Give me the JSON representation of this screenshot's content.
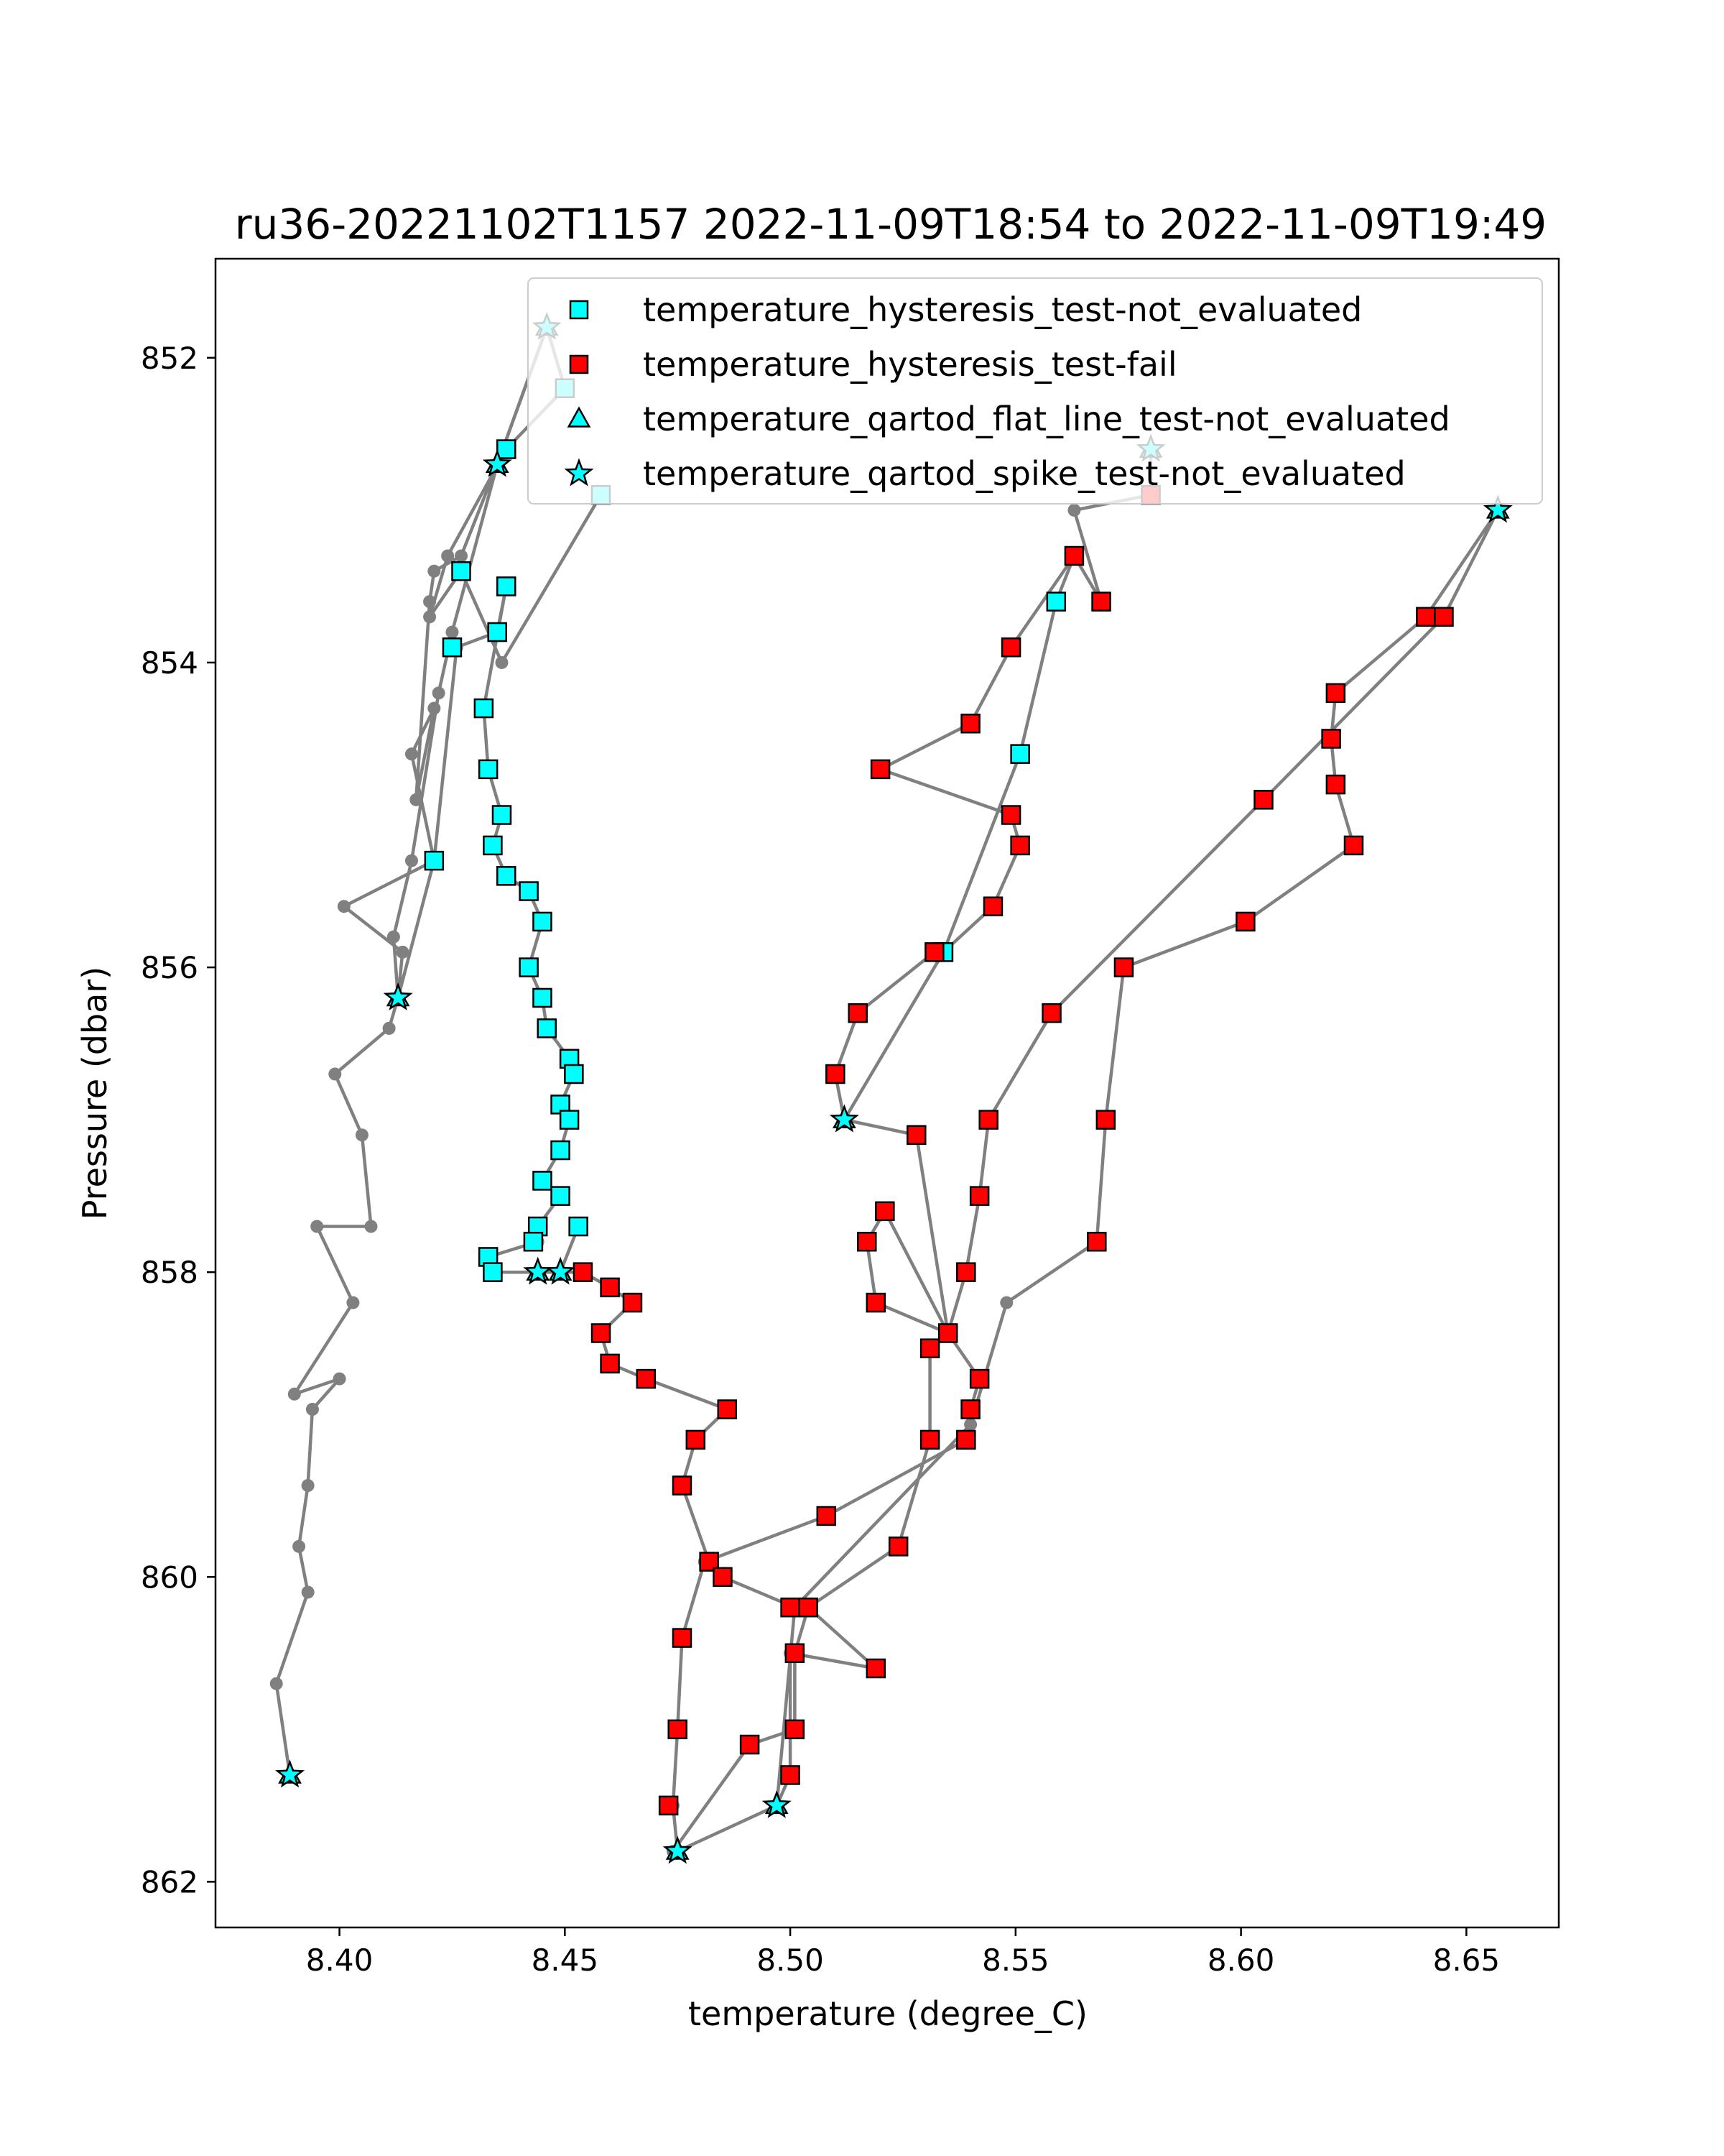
{
  "chart_data": {
    "type": "scatter",
    "title": "ru36-20221102T1157 2022-11-09T18:54 to 2022-11-09T19:49",
    "xlabel": "temperature (degree_C)",
    "ylabel": "Pressure (dbar)",
    "xlim": [
      8.3725,
      8.6705
    ],
    "ylim": [
      862.3,
      851.35
    ],
    "y_inverted": true,
    "grid": false,
    "legend_position": "top-right",
    "x_ticks": [
      "8.40",
      "8.45",
      "8.50",
      "8.55",
      "8.60",
      "8.65"
    ],
    "y_ticks": [
      "852",
      "854",
      "856",
      "858",
      "860",
      "862"
    ],
    "colors": {
      "line": "#808080",
      "not_evaluated": "#00ffff",
      "fail": "#ff0000",
      "edge": "#000000"
    },
    "legend": [
      {
        "label": "temperature_hysteresis_test-not_evaluated",
        "marker": "square",
        "color": "#00ffff"
      },
      {
        "label": "temperature_hysteresis_test-fail",
        "marker": "square",
        "color": "#ff0000"
      },
      {
        "label": "temperature_qartod_flat_line_test-not_evaluated",
        "marker": "triangle",
        "color": "#00ffff"
      },
      {
        "label": "temperature_qartod_spike_test-not_evaluated",
        "marker": "star",
        "color": "#00ffff"
      }
    ],
    "profiles": [
      [
        [
          8.389,
          861.3
        ],
        [
          8.386,
          860.7
        ],
        [
          8.393,
          860.1
        ],
        [
          8.391,
          859.8
        ],
        [
          8.393,
          859.4
        ],
        [
          8.394,
          858.9
        ],
        [
          8.4,
          858.7
        ],
        [
          8.39,
          858.8
        ],
        [
          8.403,
          858.2
        ],
        [
          8.395,
          857.7
        ],
        [
          8.407,
          857.7
        ],
        [
          8.405,
          857.1
        ],
        [
          8.399,
          856.7
        ],
        [
          8.411,
          856.4
        ],
        [
          8.413,
          856.2
        ],
        [
          8.414,
          855.9
        ],
        [
          8.401,
          855.6
        ],
        [
          8.421,
          855.3
        ],
        [
          8.416,
          854.6
        ],
        [
          8.421,
          854.3
        ],
        [
          8.417,
          854.9
        ],
        [
          8.42,
          853.6
        ],
        [
          8.421,
          853.4
        ],
        [
          8.427,
          853.3
        ],
        [
          8.435,
          852.7
        ],
        [
          8.446,
          851.8
        ]
      ],
      [
        [
          8.446,
          851.8
        ],
        [
          8.435,
          852.7
        ],
        [
          8.425,
          853.8
        ],
        [
          8.422,
          854.2
        ],
        [
          8.416,
          855.3
        ],
        [
          8.412,
          855.8
        ],
        [
          8.413,
          856.2
        ]
      ],
      [
        [
          8.446,
          851.8
        ],
        [
          8.45,
          852.2
        ],
        [
          8.437,
          852.6
        ],
        [
          8.424,
          853.3
        ],
        [
          8.42,
          853.7
        ],
        [
          8.427,
          853.4
        ],
        [
          8.436,
          854.0
        ],
        [
          8.458,
          852.9
        ]
      ],
      [
        [
          8.413,
          856.2
        ],
        [
          8.421,
          855.3
        ],
        [
          8.426,
          853.9
        ],
        [
          8.435,
          853.8
        ],
        [
          8.437,
          853.5
        ],
        [
          8.432,
          854.3
        ]
      ],
      [
        [
          8.432,
          854.3
        ],
        [
          8.433,
          854.7
        ],
        [
          8.436,
          855.0
        ],
        [
          8.434,
          855.2
        ],
        [
          8.437,
          855.4
        ],
        [
          8.442,
          855.5
        ],
        [
          8.445,
          855.7
        ],
        [
          8.442,
          856.0
        ],
        [
          8.445,
          856.2
        ],
        [
          8.446,
          856.4
        ],
        [
          8.451,
          856.6
        ],
        [
          8.452,
          856.7
        ],
        [
          8.449,
          856.9
        ],
        [
          8.451,
          857.0
        ],
        [
          8.449,
          857.2
        ],
        [
          8.445,
          857.4
        ],
        [
          8.449,
          857.5
        ],
        [
          8.444,
          857.7
        ],
        [
          8.444,
          857.8
        ],
        [
          8.433,
          857.9
        ],
        [
          8.434,
          858.0
        ],
        [
          8.444,
          858.0
        ],
        [
          8.449,
          858.0
        ],
        [
          8.453,
          857.7
        ]
      ],
      [
        [
          8.444,
          858.0
        ],
        [
          8.454,
          858.0
        ],
        [
          8.46,
          858.1
        ],
        [
          8.465,
          858.2
        ],
        [
          8.458,
          858.4
        ],
        [
          8.46,
          858.6
        ],
        [
          8.468,
          858.7
        ],
        [
          8.486,
          858.9
        ],
        [
          8.479,
          859.1
        ],
        [
          8.476,
          859.4
        ],
        [
          8.482,
          859.9
        ],
        [
          8.485,
          860.0
        ],
        [
          8.501,
          860.2
        ],
        [
          8.504,
          860.2
        ],
        [
          8.519,
          860.6
        ],
        [
          8.5,
          860.5
        ],
        [
          8.5,
          861.3
        ],
        [
          8.497,
          861.5
        ],
        [
          8.475,
          861.8
        ],
        [
          8.474,
          861.5
        ],
        [
          8.475,
          861.0
        ],
        [
          8.476,
          860.4
        ],
        [
          8.481,
          859.9
        ]
      ],
      [
        [
          8.474,
          861.8
        ],
        [
          8.491,
          861.1
        ],
        [
          8.501,
          861.0
        ],
        [
          8.501,
          860.5
        ],
        [
          8.504,
          860.2
        ],
        [
          8.524,
          859.8
        ],
        [
          8.531,
          859.1
        ],
        [
          8.531,
          858.5
        ],
        [
          8.535,
          858.4
        ],
        [
          8.542,
          858.7
        ],
        [
          8.54,
          858.9
        ],
        [
          8.539,
          859.1
        ],
        [
          8.508,
          859.6
        ],
        [
          8.481,
          859.9
        ]
      ],
      [
        [
          8.497,
          861.5
        ],
        [
          8.501,
          860.2
        ],
        [
          8.54,
          859.0
        ],
        [
          8.548,
          858.2
        ],
        [
          8.568,
          857.8
        ],
        [
          8.57,
          857.0
        ],
        [
          8.574,
          856.0
        ],
        [
          8.601,
          855.7
        ],
        [
          8.625,
          855.2
        ],
        [
          8.621,
          854.8
        ],
        [
          8.62,
          854.5
        ],
        [
          8.621,
          854.2
        ],
        [
          8.641,
          853.7
        ],
        [
          8.657,
          853.0
        ],
        [
          8.645,
          853.7
        ],
        [
          8.605,
          854.9
        ],
        [
          8.558,
          856.3
        ],
        [
          8.544,
          857.0
        ],
        [
          8.542,
          857.5
        ],
        [
          8.539,
          858.0
        ],
        [
          8.535,
          858.4
        ]
      ],
      [
        [
          8.535,
          858.4
        ],
        [
          8.521,
          857.6
        ],
        [
          8.517,
          857.8
        ],
        [
          8.519,
          858.2
        ],
        [
          8.535,
          858.4
        ],
        [
          8.528,
          857.1
        ],
        [
          8.512,
          857.0
        ],
        [
          8.51,
          856.7
        ],
        [
          8.515,
          856.3
        ],
        [
          8.532,
          855.9
        ],
        [
          8.534,
          855.9
        ],
        [
          8.545,
          855.6
        ],
        [
          8.551,
          855.2
        ],
        [
          8.549,
          855.0
        ],
        [
          8.52,
          854.7
        ],
        [
          8.54,
          854.4
        ],
        [
          8.549,
          853.9
        ],
        [
          8.563,
          853.3
        ],
        [
          8.569,
          853.6
        ],
        [
          8.563,
          853.0
        ],
        [
          8.58,
          852.9
        ],
        [
          8.58,
          852.6
        ]
      ],
      [
        [
          8.512,
          857.0
        ],
        [
          8.534,
          855.9
        ],
        [
          8.551,
          854.6
        ],
        [
          8.559,
          853.6
        ],
        [
          8.563,
          853.3
        ]
      ]
    ],
    "squares_not_evaluated": [
      [
        8.45,
        852.2
      ],
      [
        8.437,
        852.6
      ],
      [
        8.458,
        852.9
      ],
      [
        8.427,
        853.4
      ],
      [
        8.437,
        853.5
      ],
      [
        8.435,
        853.8
      ],
      [
        8.425,
        853.9
      ],
      [
        8.432,
        854.3
      ],
      [
        8.433,
        854.7
      ],
      [
        8.436,
        855.0
      ],
      [
        8.434,
        855.2
      ],
      [
        8.421,
        855.3
      ],
      [
        8.437,
        855.4
      ],
      [
        8.442,
        855.5
      ],
      [
        8.445,
        855.7
      ],
      [
        8.442,
        856.0
      ],
      [
        8.445,
        856.2
      ],
      [
        8.446,
        856.4
      ],
      [
        8.451,
        856.6
      ],
      [
        8.452,
        856.7
      ],
      [
        8.449,
        856.9
      ],
      [
        8.451,
        857.0
      ],
      [
        8.449,
        857.2
      ],
      [
        8.445,
        857.4
      ],
      [
        8.449,
        857.5
      ],
      [
        8.444,
        857.7
      ],
      [
        8.453,
        857.7
      ],
      [
        8.443,
        857.8
      ],
      [
        8.433,
        857.9
      ],
      [
        8.434,
        858.0
      ],
      [
        8.559,
        853.6
      ],
      [
        8.551,
        854.6
      ],
      [
        8.534,
        855.9
      ]
    ],
    "squares_fail": [
      [
        8.58,
        852.9
      ],
      [
        8.563,
        853.3
      ],
      [
        8.569,
        853.6
      ],
      [
        8.645,
        853.7
      ],
      [
        8.641,
        853.7
      ],
      [
        8.549,
        853.9
      ],
      [
        8.621,
        854.2
      ],
      [
        8.54,
        854.4
      ],
      [
        8.62,
        854.5
      ],
      [
        8.52,
        854.7
      ],
      [
        8.621,
        854.8
      ],
      [
        8.605,
        854.9
      ],
      [
        8.549,
        855.0
      ],
      [
        8.551,
        855.2
      ],
      [
        8.625,
        855.2
      ],
      [
        8.545,
        855.6
      ],
      [
        8.601,
        855.7
      ],
      [
        8.532,
        855.9
      ],
      [
        8.574,
        856.0
      ],
      [
        8.515,
        856.3
      ],
      [
        8.558,
        856.3
      ],
      [
        8.51,
        856.7
      ],
      [
        8.57,
        857.0
      ],
      [
        8.544,
        857.0
      ],
      [
        8.528,
        857.1
      ],
      [
        8.542,
        857.5
      ],
      [
        8.521,
        857.6
      ],
      [
        8.517,
        857.8
      ],
      [
        8.568,
        857.8
      ],
      [
        8.539,
        858.0
      ],
      [
        8.454,
        858.0
      ],
      [
        8.46,
        858.1
      ],
      [
        8.519,
        858.2
      ],
      [
        8.465,
        858.2
      ],
      [
        8.458,
        858.4
      ],
      [
        8.535,
        858.4
      ],
      [
        8.531,
        858.5
      ],
      [
        8.46,
        858.6
      ],
      [
        8.542,
        858.7
      ],
      [
        8.468,
        858.7
      ],
      [
        8.486,
        858.9
      ],
      [
        8.54,
        858.9
      ],
      [
        8.479,
        859.1
      ],
      [
        8.531,
        859.1
      ],
      [
        8.539,
        859.1
      ],
      [
        8.476,
        859.4
      ],
      [
        8.508,
        859.6
      ],
      [
        8.524,
        859.8
      ],
      [
        8.482,
        859.9
      ],
      [
        8.485,
        860.0
      ],
      [
        8.5,
        860.2
      ],
      [
        8.504,
        860.2
      ],
      [
        8.501,
        860.5
      ],
      [
        8.476,
        860.4
      ],
      [
        8.519,
        860.6
      ],
      [
        8.475,
        861.0
      ],
      [
        8.501,
        861.0
      ],
      [
        8.491,
        861.1
      ],
      [
        8.5,
        861.3
      ],
      [
        8.473,
        861.5
      ]
    ],
    "stars_not_evaluated": [
      [
        8.446,
        851.8
      ],
      [
        8.435,
        852.7
      ],
      [
        8.58,
        852.6
      ],
      [
        8.657,
        853.0
      ],
      [
        8.413,
        856.2
      ],
      [
        8.512,
        857.0
      ],
      [
        8.449,
        858.0
      ],
      [
        8.444,
        858.0
      ],
      [
        8.389,
        861.3
      ],
      [
        8.497,
        861.5
      ],
      [
        8.475,
        861.8
      ]
    ]
  }
}
